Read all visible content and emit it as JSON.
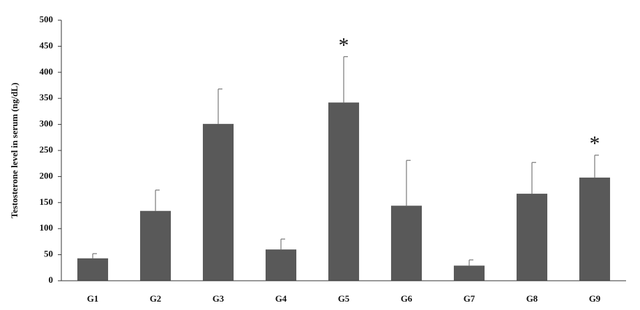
{
  "chart_data": {
    "type": "bar",
    "y_label": "Testosterone level in serum (ng/dL)",
    "categories": [
      "G1",
      "G2",
      "G3",
      "G4",
      "G5",
      "G6",
      "G7",
      "G8",
      "G9"
    ],
    "values": [
      43,
      134,
      301,
      60,
      342,
      144,
      29,
      167,
      198
    ],
    "errors": [
      9,
      40,
      67,
      20,
      88,
      87,
      11,
      60,
      43
    ],
    "color": "#595959",
    "ylim": [
      0,
      500
    ],
    "yticks": [
      0,
      50,
      100,
      150,
      200,
      250,
      300,
      350,
      400,
      450,
      500
    ],
    "grid": false,
    "annotations": [
      {
        "category": "G5",
        "text": "*"
      },
      {
        "category": "G9",
        "text": "*"
      }
    ]
  }
}
